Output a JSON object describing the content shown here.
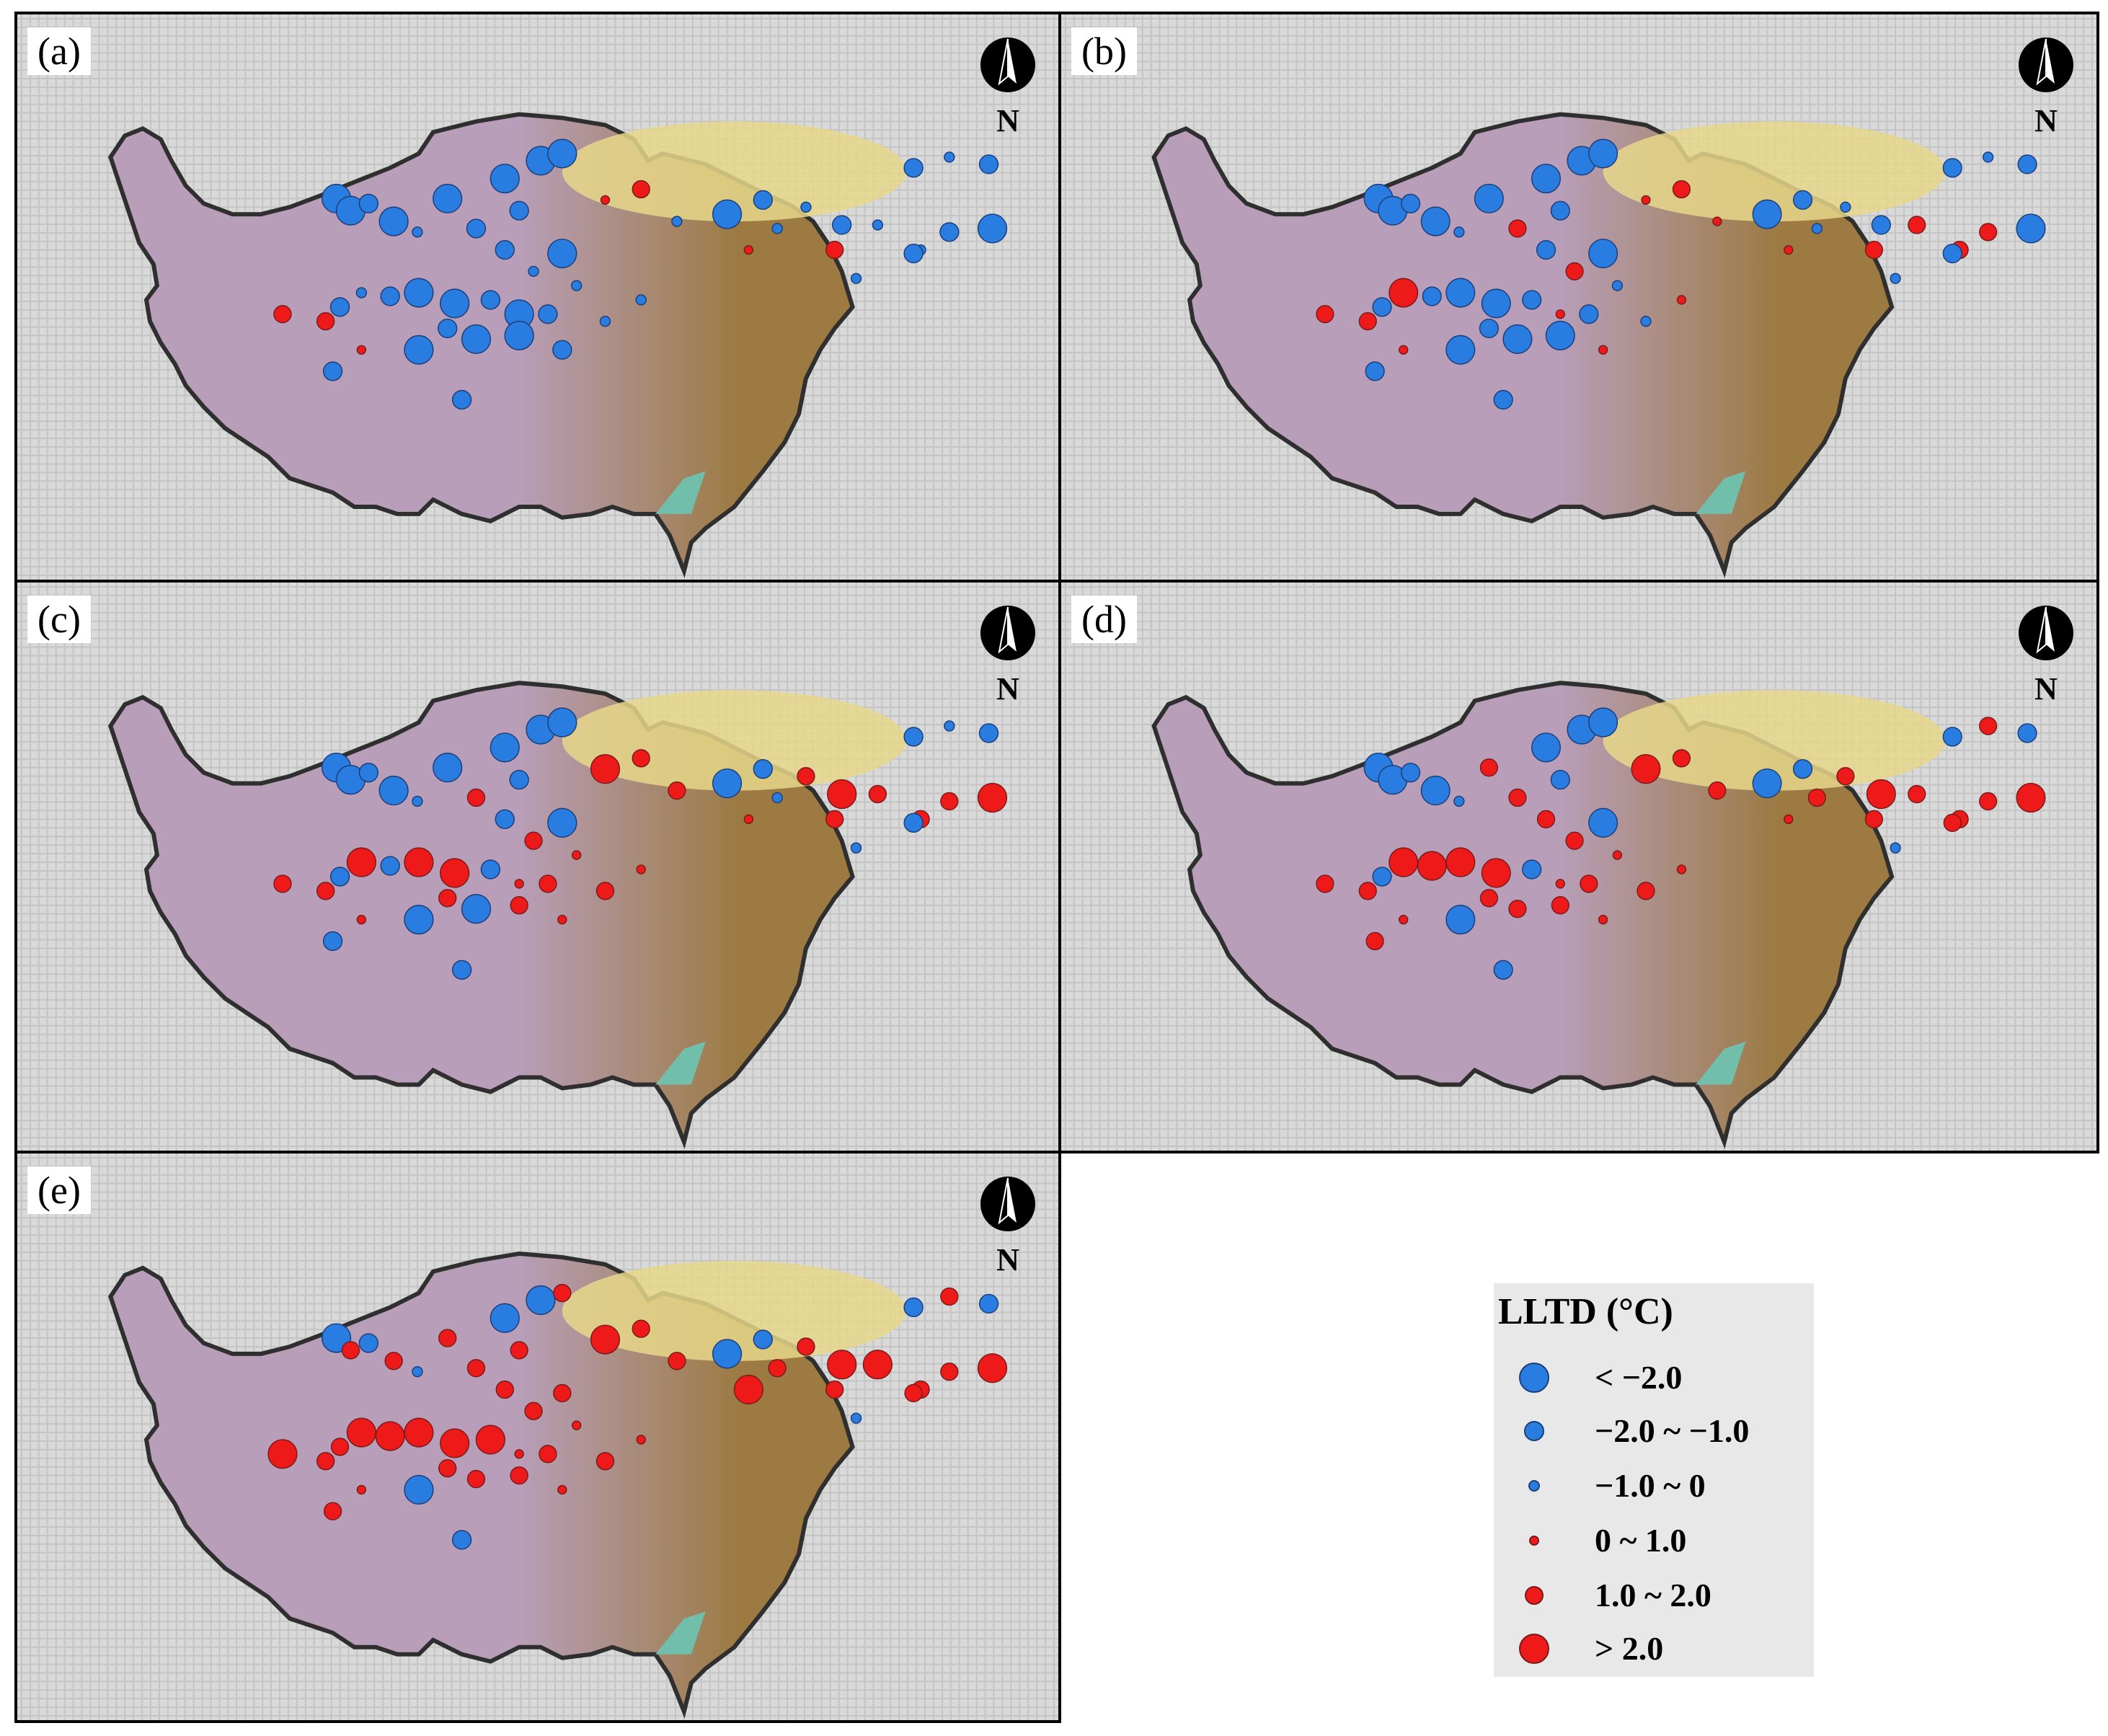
{
  "colors": {
    "cooling": "#2a7de0",
    "warming": "#ee1a1a",
    "plateau": "#b89eb8",
    "desert": "#e6d78a",
    "terrain": "#9c7a42",
    "lowland": "#6cc4b4",
    "background": "#d9d9d9",
    "border": "#2f2f2f"
  },
  "north_arrow": {
    "label": "N",
    "icon": "north-arrow-icon"
  },
  "panels": [
    {
      "label": "(a)"
    },
    {
      "label": "(b)"
    },
    {
      "label": "(c)"
    },
    {
      "label": "(d)"
    },
    {
      "label": "(e)"
    }
  ],
  "legend": {
    "title": "LLTD (°C)",
    "items": [
      {
        "label": "< −2.0",
        "color": "blue",
        "size": "large"
      },
      {
        "label": "−2.0 ~ −1.0",
        "color": "blue",
        "size": "medium"
      },
      {
        "label": "−1.0 ~ 0",
        "color": "blue",
        "size": "small"
      },
      {
        "label": "0 ~ 1.0",
        "color": "red",
        "size": "small"
      },
      {
        "label": "1.0 ~ 2.0",
        "color": "red",
        "size": "medium"
      },
      {
        "label": "> 2.0",
        "color": "red",
        "size": "large"
      }
    ]
  }
}
